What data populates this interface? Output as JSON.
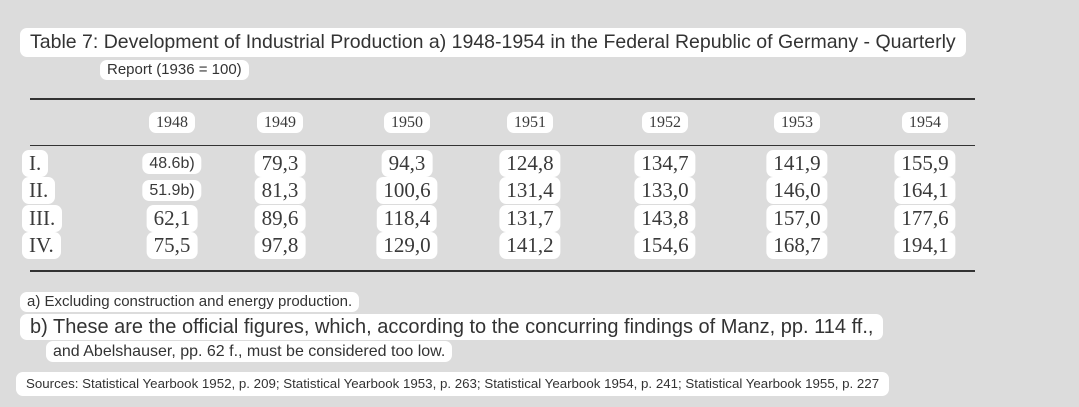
{
  "header": {
    "title": "Table 7: Development of Industrial Production a) 1948-1954 in the Federal Republic of Germany - Quarterly",
    "subtitle": "Report (1936 = 100)"
  },
  "table": {
    "columns": [
      "1948",
      "1949",
      "1950",
      "1951",
      "1952",
      "1953",
      "1954"
    ],
    "rows": [
      {
        "label": "I.",
        "values": [
          "48.6b)",
          "79,3",
          "94,3",
          "124,8",
          "134,7",
          "141,9",
          "155,9"
        ]
      },
      {
        "label": "II.",
        "values": [
          "51.9b)",
          "81,3",
          "100,6",
          "131,4",
          "133,0",
          "146,0",
          "164,1"
        ]
      },
      {
        "label": "III.",
        "values": [
          "62,1",
          "89,6",
          "118,4",
          "131,7",
          "143,8",
          "157,0",
          "177,6"
        ]
      },
      {
        "label": "IV.",
        "values": [
          "75,5",
          "97,8",
          "129,0",
          "141,2",
          "154,6",
          "168,7",
          "194,1"
        ]
      }
    ]
  },
  "footnotes": [
    "a) Excluding construction and energy production.",
    "b) These are the official figures, which, according to the concurring findings of Manz, pp. 114 ff.,",
    "and Abelshauser, pp. 62 f., must be considered too low."
  ],
  "sources": "Sources: Statistical Yearbook 1952, p. 209; Statistical Yearbook 1953, p. 263; Statistical Yearbook 1954, p. 241; Statistical Yearbook 1955, p. 227"
}
